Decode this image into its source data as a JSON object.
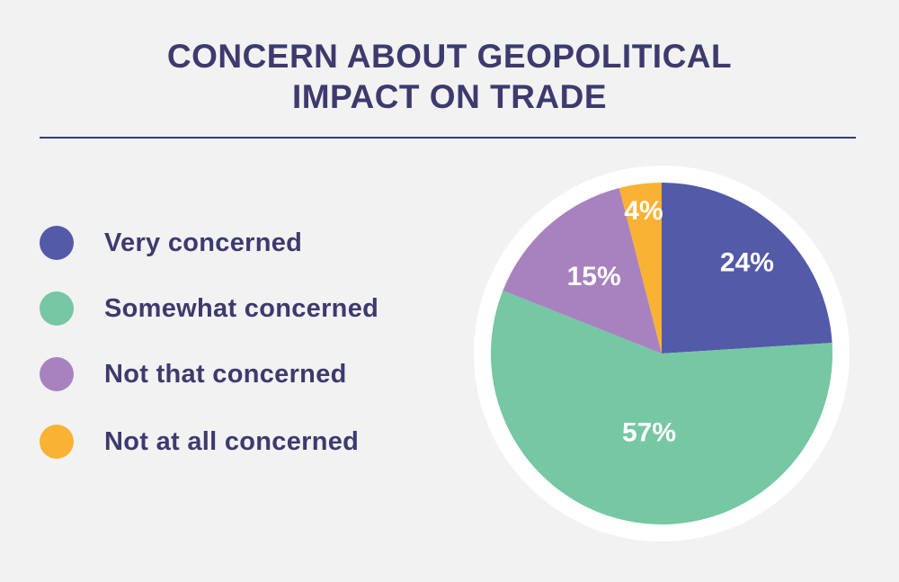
{
  "title_line1": "CONCERN ABOUT GEOPOLITICAL",
  "title_line2": "IMPACT ON TRADE",
  "chart_data": {
    "type": "pie",
    "categories": [
      "Very concerned",
      "Somewhat concerned",
      "Not that concerned",
      "Not at all concerned"
    ],
    "values": [
      24,
      57,
      15,
      4
    ],
    "value_labels": [
      "24%",
      "57%",
      "15%",
      "4%"
    ],
    "colors": [
      "#535aa8",
      "#76c7a3",
      "#a882bf",
      "#f9b233"
    ],
    "legend_placement": "left",
    "start_angle": "12 o'clock, clockwise"
  },
  "colors": {
    "background": "#f2f2f2",
    "title": "#3d3a6e",
    "pie_border": "#ffffff"
  }
}
